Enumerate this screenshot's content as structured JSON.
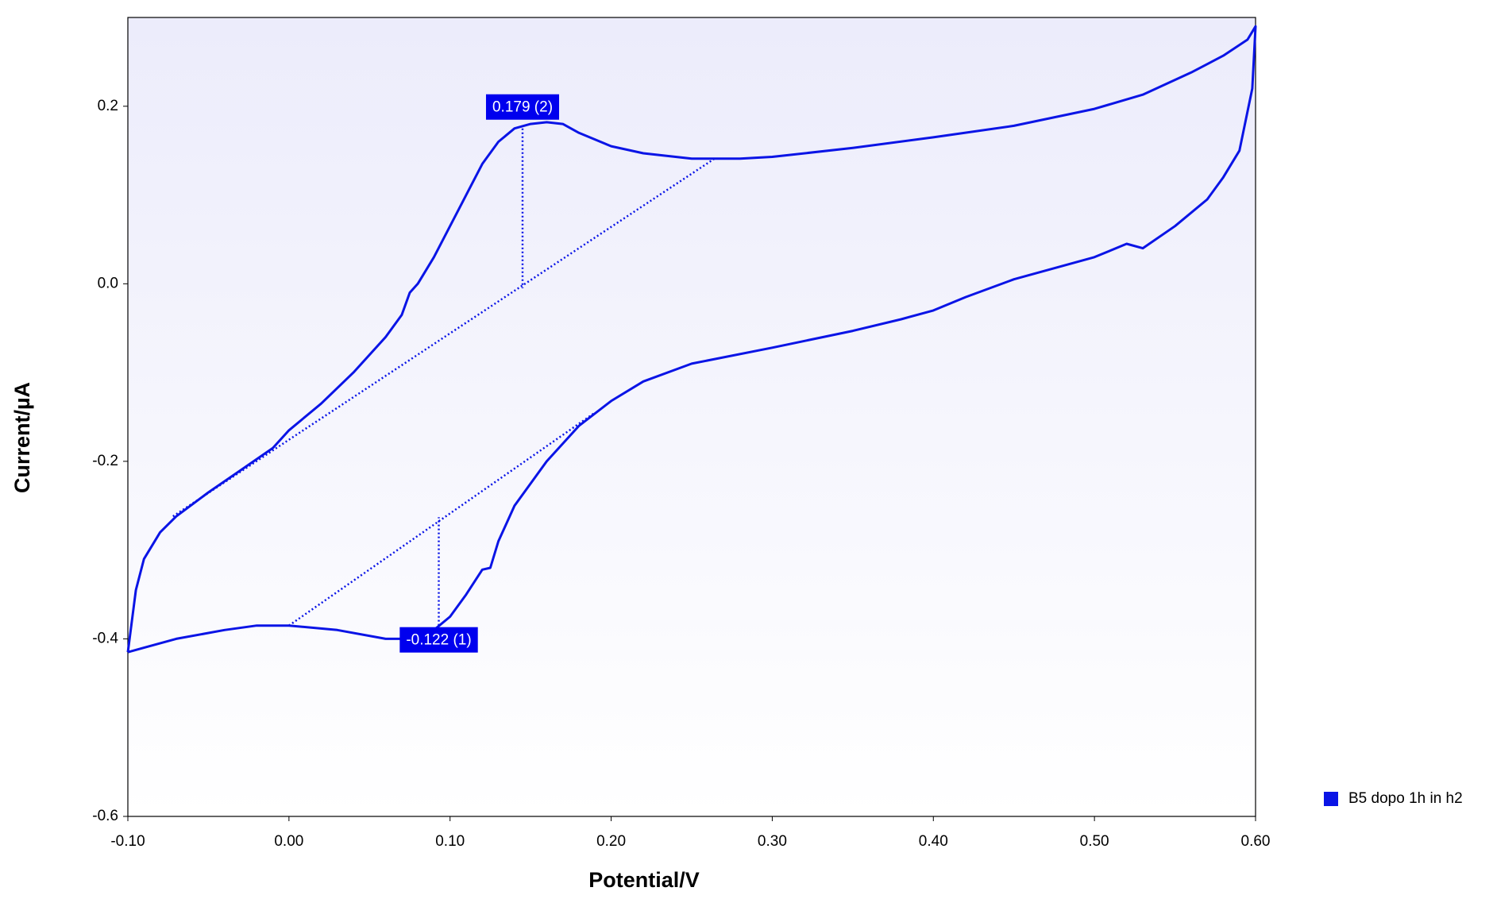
{
  "chart_data": {
    "type": "line",
    "xlabel": "Potential/V",
    "ylabel": "Current/µA",
    "xlim": [
      -0.1,
      0.6
    ],
    "ylim": [
      -0.6,
      0.3
    ],
    "xticks": [
      {
        "value": -0.1,
        "label": "-0.10"
      },
      {
        "value": 0,
        "label": "0.00"
      },
      {
        "value": 0.1,
        "label": "0.10"
      },
      {
        "value": 0.2,
        "label": "0.20"
      },
      {
        "value": 0.3,
        "label": "0.30"
      },
      {
        "value": 0.4,
        "label": "0.40"
      },
      {
        "value": 0.5,
        "label": "0.50"
      },
      {
        "value": 0.6,
        "label": "0.60"
      }
    ],
    "yticks": [
      -0.6,
      -0.4,
      -0.2,
      {
        "value": 0,
        "label": "0.0"
      },
      0.2
    ],
    "series": [
      {
        "name": "B5 dopo 1h in h2",
        "color": "#0a14e6",
        "x": [
          -0.1,
          -0.095,
          -0.09,
          -0.08,
          -0.07,
          -0.05,
          -0.03,
          -0.01,
          0.0,
          0.02,
          0.04,
          0.06,
          0.07,
          0.075,
          0.08,
          0.09,
          0.1,
          0.11,
          0.12,
          0.13,
          0.14,
          0.15,
          0.16,
          0.17,
          0.18,
          0.2,
          0.22,
          0.25,
          0.28,
          0.3,
          0.35,
          0.4,
          0.45,
          0.5,
          0.53,
          0.56,
          0.58,
          0.595,
          0.6,
          0.598,
          0.59,
          0.58,
          0.57,
          0.55,
          0.53,
          0.52,
          0.5,
          0.45,
          0.42,
          0.4,
          0.38,
          0.35,
          0.3,
          0.25,
          0.22,
          0.2,
          0.18,
          0.16,
          0.14,
          0.13,
          0.125,
          0.12,
          0.11,
          0.1,
          0.09,
          0.08,
          0.06,
          0.03,
          0.0,
          -0.02,
          -0.04,
          -0.07,
          -0.09,
          -0.1
        ],
        "values": [
          -0.415,
          -0.345,
          -0.31,
          -0.28,
          -0.262,
          -0.235,
          -0.21,
          -0.185,
          -0.165,
          -0.135,
          -0.1,
          -0.06,
          -0.035,
          -0.01,
          0.0,
          0.03,
          0.065,
          0.1,
          0.135,
          0.16,
          0.175,
          0.18,
          0.182,
          0.18,
          0.17,
          0.155,
          0.147,
          0.141,
          0.141,
          0.143,
          0.153,
          0.165,
          0.178,
          0.197,
          0.213,
          0.238,
          0.257,
          0.275,
          0.29,
          0.22,
          0.15,
          0.12,
          0.095,
          0.065,
          0.04,
          0.045,
          0.03,
          0.005,
          -0.015,
          -0.03,
          -0.04,
          -0.053,
          -0.072,
          -0.09,
          -0.11,
          -0.132,
          -0.16,
          -0.2,
          -0.25,
          -0.29,
          -0.32,
          -0.322,
          -0.35,
          -0.375,
          -0.39,
          -0.4,
          -0.4,
          -0.39,
          -0.385,
          -0.385,
          -0.39,
          -0.4,
          -0.41,
          -0.415
        ]
      }
    ],
    "peaks": [
      {
        "label": "0.179 (2)",
        "x": 0.145,
        "y_peak": 0.175,
        "y_base": -0.005,
        "baseline": [
          [
            -0.072,
            -0.262
          ],
          [
            0.265,
            0.142
          ]
        ]
      },
      {
        "label": "-0.122 (1)",
        "x": 0.093,
        "y_peak": -0.385,
        "y_base": -0.263,
        "baseline": [
          [
            0.0,
            -0.385
          ],
          [
            0.19,
            -0.145
          ]
        ]
      }
    ]
  }
}
